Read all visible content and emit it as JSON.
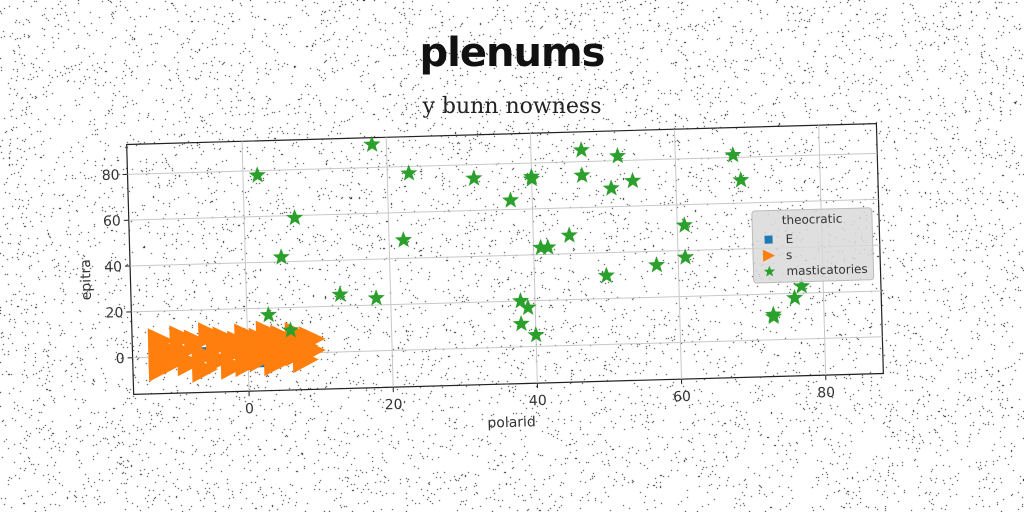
{
  "title": "plenums",
  "chart_data": {
    "type": "scatter",
    "title": "y bunn nowness",
    "xlabel": "polarid",
    "ylabel": "epitra",
    "xlim": [
      -16,
      88
    ],
    "ylim": [
      -16,
      93
    ],
    "xticks": [
      0,
      20,
      40,
      60,
      80
    ],
    "yticks": [
      0,
      20,
      40,
      60,
      80
    ],
    "grid": true,
    "legend": {
      "title": "theocratic",
      "position": "right"
    },
    "series": [
      {
        "name": "E",
        "marker": "square",
        "color": "#1f77b4",
        "points": [
          [
            -12,
            3
          ],
          [
            -10,
            1
          ],
          [
            -8,
            5
          ],
          [
            -6,
            2
          ],
          [
            -5,
            -3
          ],
          [
            -3,
            4
          ],
          [
            -2,
            0
          ],
          [
            -1,
            -4
          ],
          [
            0,
            2
          ],
          [
            0,
            -5
          ],
          [
            1,
            6
          ],
          [
            2,
            0
          ],
          [
            3,
            3
          ],
          [
            4,
            -2
          ],
          [
            5,
            5
          ],
          [
            6,
            1
          ],
          [
            -4,
            7
          ],
          [
            -9,
            -2
          ],
          [
            2,
            -4
          ],
          [
            7,
            3
          ]
        ]
      },
      {
        "name": "s",
        "marker": "triangle-right",
        "color": "#ff7f0e",
        "points": [
          [
            -12,
            7
          ],
          [
            -12,
            0
          ],
          [
            -12,
            -5
          ],
          [
            -11,
            3
          ],
          [
            -10,
            -2
          ],
          [
            -9,
            8
          ],
          [
            -9,
            2
          ],
          [
            -8,
            -3
          ],
          [
            -7,
            6
          ],
          [
            -6,
            0
          ],
          [
            -6,
            -6
          ],
          [
            -5,
            9
          ],
          [
            -4,
            4
          ],
          [
            -4,
            -2
          ],
          [
            -3,
            7
          ],
          [
            -2,
            1
          ],
          [
            -2,
            -5
          ],
          [
            -1,
            5
          ],
          [
            0,
            8
          ],
          [
            0,
            0
          ],
          [
            0,
            -4
          ],
          [
            1,
            3
          ],
          [
            2,
            6
          ],
          [
            2,
            -2
          ],
          [
            3,
            9
          ],
          [
            3,
            1
          ],
          [
            4,
            -4
          ],
          [
            4,
            5
          ],
          [
            5,
            2
          ],
          [
            5,
            7
          ],
          [
            6,
            -1
          ],
          [
            6,
            4
          ],
          [
            7,
            8
          ],
          [
            7,
            0
          ],
          [
            8,
            3
          ],
          [
            8,
            -3
          ],
          [
            9,
            6
          ],
          [
            9,
            1
          ]
        ]
      },
      {
        "name": "masticatories",
        "marker": "star",
        "color": "#2ca02c",
        "points": [
          [
            2,
            78
          ],
          [
            18,
            90
          ],
          [
            23,
            77
          ],
          [
            7,
            59
          ],
          [
            5,
            42
          ],
          [
            22,
            48
          ],
          [
            13,
            25
          ],
          [
            18,
            23
          ],
          [
            3,
            17
          ],
          [
            6,
            10
          ],
          [
            32,
            74
          ],
          [
            37,
            64
          ],
          [
            40,
            73
          ],
          [
            40,
            74
          ],
          [
            38,
            20
          ],
          [
            39,
            17
          ],
          [
            38,
            10
          ],
          [
            40,
            5
          ],
          [
            41,
            43
          ],
          [
            42,
            43
          ],
          [
            45,
            48
          ],
          [
            47,
            74
          ],
          [
            47,
            85
          ],
          [
            51,
            68
          ],
          [
            52,
            82
          ],
          [
            50,
            30
          ],
          [
            54,
            71
          ],
          [
            57,
            34
          ],
          [
            61,
            51
          ],
          [
            61,
            37
          ],
          [
            68,
            81
          ],
          [
            69,
            70
          ],
          [
            73,
            11
          ],
          [
            73,
            10
          ],
          [
            76,
            18
          ],
          [
            77,
            23
          ]
        ]
      }
    ]
  }
}
